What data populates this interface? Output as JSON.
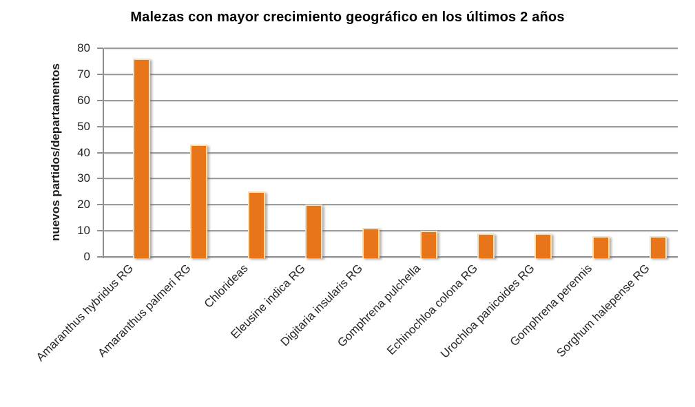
{
  "chart_data": {
    "type": "bar",
    "title": "Malezas con mayor crecimiento geográfico en los últimos 2 años",
    "ylabel": "nuevos partidos/departamentos",
    "xlabel": "",
    "categories": [
      "Amaranthus hybridus RG",
      "Amaranthus palmeri RG",
      "Chlorideas",
      "Eleusine indica RG",
      "Digitaria insularis RG",
      "Gomphrena pulchella",
      "Echinochloa colona RG",
      "Urochloa panicoides RG",
      "Gomphrena perennis",
      "Sorghum halepense RG"
    ],
    "values": [
      76,
      43,
      25,
      20,
      11,
      10,
      9,
      9,
      8,
      8
    ],
    "ylim": [
      0,
      80
    ],
    "yticks": [
      0,
      10,
      20,
      30,
      40,
      50,
      60,
      70,
      80
    ],
    "grid": "horizontal",
    "legend": "none",
    "colors": {
      "bar_fill": "#E8751A",
      "bar_edge": "#F8DFB4",
      "gridline": "#9C9C9C",
      "axis": "#8F8F8F",
      "title_text": "#000000",
      "tick_text": "#262626",
      "background": "#FFFFFF"
    }
  }
}
